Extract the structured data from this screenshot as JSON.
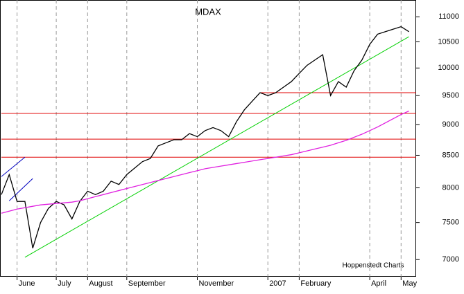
{
  "chart_data": {
    "type": "line",
    "title": "MDAX",
    "annotation": "Hoppenstedt Charts",
    "categories": [
      null,
      null,
      "June",
      null,
      null,
      null,
      null,
      "July",
      null,
      null,
      null,
      "August",
      null,
      null,
      null,
      null,
      "September",
      null,
      null,
      null,
      null,
      null,
      null,
      null,
      null,
      "November",
      null,
      null,
      null,
      null,
      null,
      null,
      null,
      null,
      "2007",
      null,
      null,
      null,
      "February",
      null,
      null,
      null,
      null,
      null,
      null,
      null,
      null,
      "April",
      null,
      null,
      null,
      "May",
      null
    ],
    "series": [
      {
        "color": "#000000",
        "values": [
          7900,
          8200,
          7800,
          7800,
          7150,
          7500,
          7700,
          7800,
          7750,
          7550,
          7800,
          7950,
          7900,
          7950,
          8100,
          8050,
          8200,
          8300,
          8400,
          8450,
          8650,
          8700,
          8750,
          8750,
          8850,
          8800,
          8900,
          8950,
          8900,
          8800,
          9050,
          9250,
          9400,
          9550,
          9500,
          9550,
          9650,
          9750,
          9900,
          10050,
          10150,
          10250,
          9500,
          9750,
          9650,
          9950,
          10150,
          10450,
          10650,
          10700,
          10750,
          10800,
          10700
        ]
      },
      {
        "color": "#e020e0",
        "values": [
          7630,
          7660,
          7690,
          7710,
          7730,
          7750,
          7760,
          7770,
          7780,
          7790,
          7810,
          7840,
          7870,
          7900,
          7930,
          7960,
          7990,
          8020,
          8050,
          8080,
          8110,
          8140,
          8170,
          8200,
          8230,
          8260,
          8290,
          8310,
          8330,
          8350,
          8370,
          8390,
          8410,
          8430,
          8450,
          8470,
          8490,
          8510,
          8540,
          8570,
          8600,
          8630,
          8660,
          8700,
          8740,
          8790,
          8840,
          8900,
          8960,
          9030,
          9100,
          9170,
          9230
        ]
      }
    ],
    "reference_lines": [
      {
        "value": 9550,
        "start": 33,
        "color": "#e00000"
      },
      {
        "value": 9190,
        "start": 0,
        "color": "#e00000"
      },
      {
        "value": 8760,
        "start": 0,
        "color": "#e00000"
      },
      {
        "value": 8470,
        "start": 0,
        "color": "#e00000"
      }
    ],
    "trend_lines": [
      {
        "from": [
          3,
          7030
        ],
        "to": [
          52,
          10600
        ],
        "color": "#00d000"
      },
      {
        "from": [
          0,
          8170
        ],
        "to": [
          3,
          8470
        ],
        "color": "#0000c0"
      },
      {
        "from": [
          1,
          7810
        ],
        "to": [
          4,
          8140
        ],
        "color": "#0000c0"
      }
    ],
    "ylim": [
      6780,
      11350
    ],
    "yticks": [
      7000,
      7500,
      8000,
      8500,
      9000,
      9500,
      10000,
      10500,
      11000
    ],
    "log_scale": true,
    "grid": true
  }
}
